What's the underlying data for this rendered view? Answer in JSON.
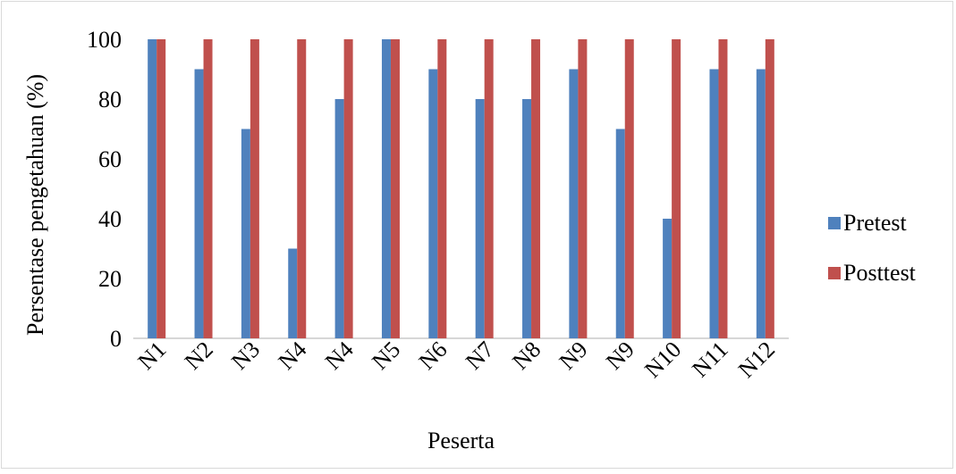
{
  "chart_data": {
    "type": "bar",
    "title": "",
    "xlabel": "Peserta",
    "ylabel": "Persentase pengetahuan (%)",
    "ylim": [
      0,
      100
    ],
    "yticks": [
      0,
      20,
      40,
      60,
      80,
      100
    ],
    "grid": false,
    "legend_position": "right",
    "categories": [
      "N1",
      "N2",
      "N3",
      "N4",
      "N4",
      "N5",
      "N6",
      "N7",
      "N8",
      "N9",
      "N9",
      "N10",
      "N11",
      "N12"
    ],
    "series": [
      {
        "name": "Pretest",
        "color": "#4f81bd",
        "values": [
          100,
          90,
          70,
          30,
          80,
          100,
          90,
          80,
          80,
          90,
          70,
          40,
          90,
          90
        ]
      },
      {
        "name": "Posttest",
        "color": "#c0504d",
        "values": [
          100,
          100,
          100,
          100,
          100,
          100,
          100,
          100,
          100,
          100,
          100,
          100,
          100,
          100
        ]
      }
    ]
  }
}
